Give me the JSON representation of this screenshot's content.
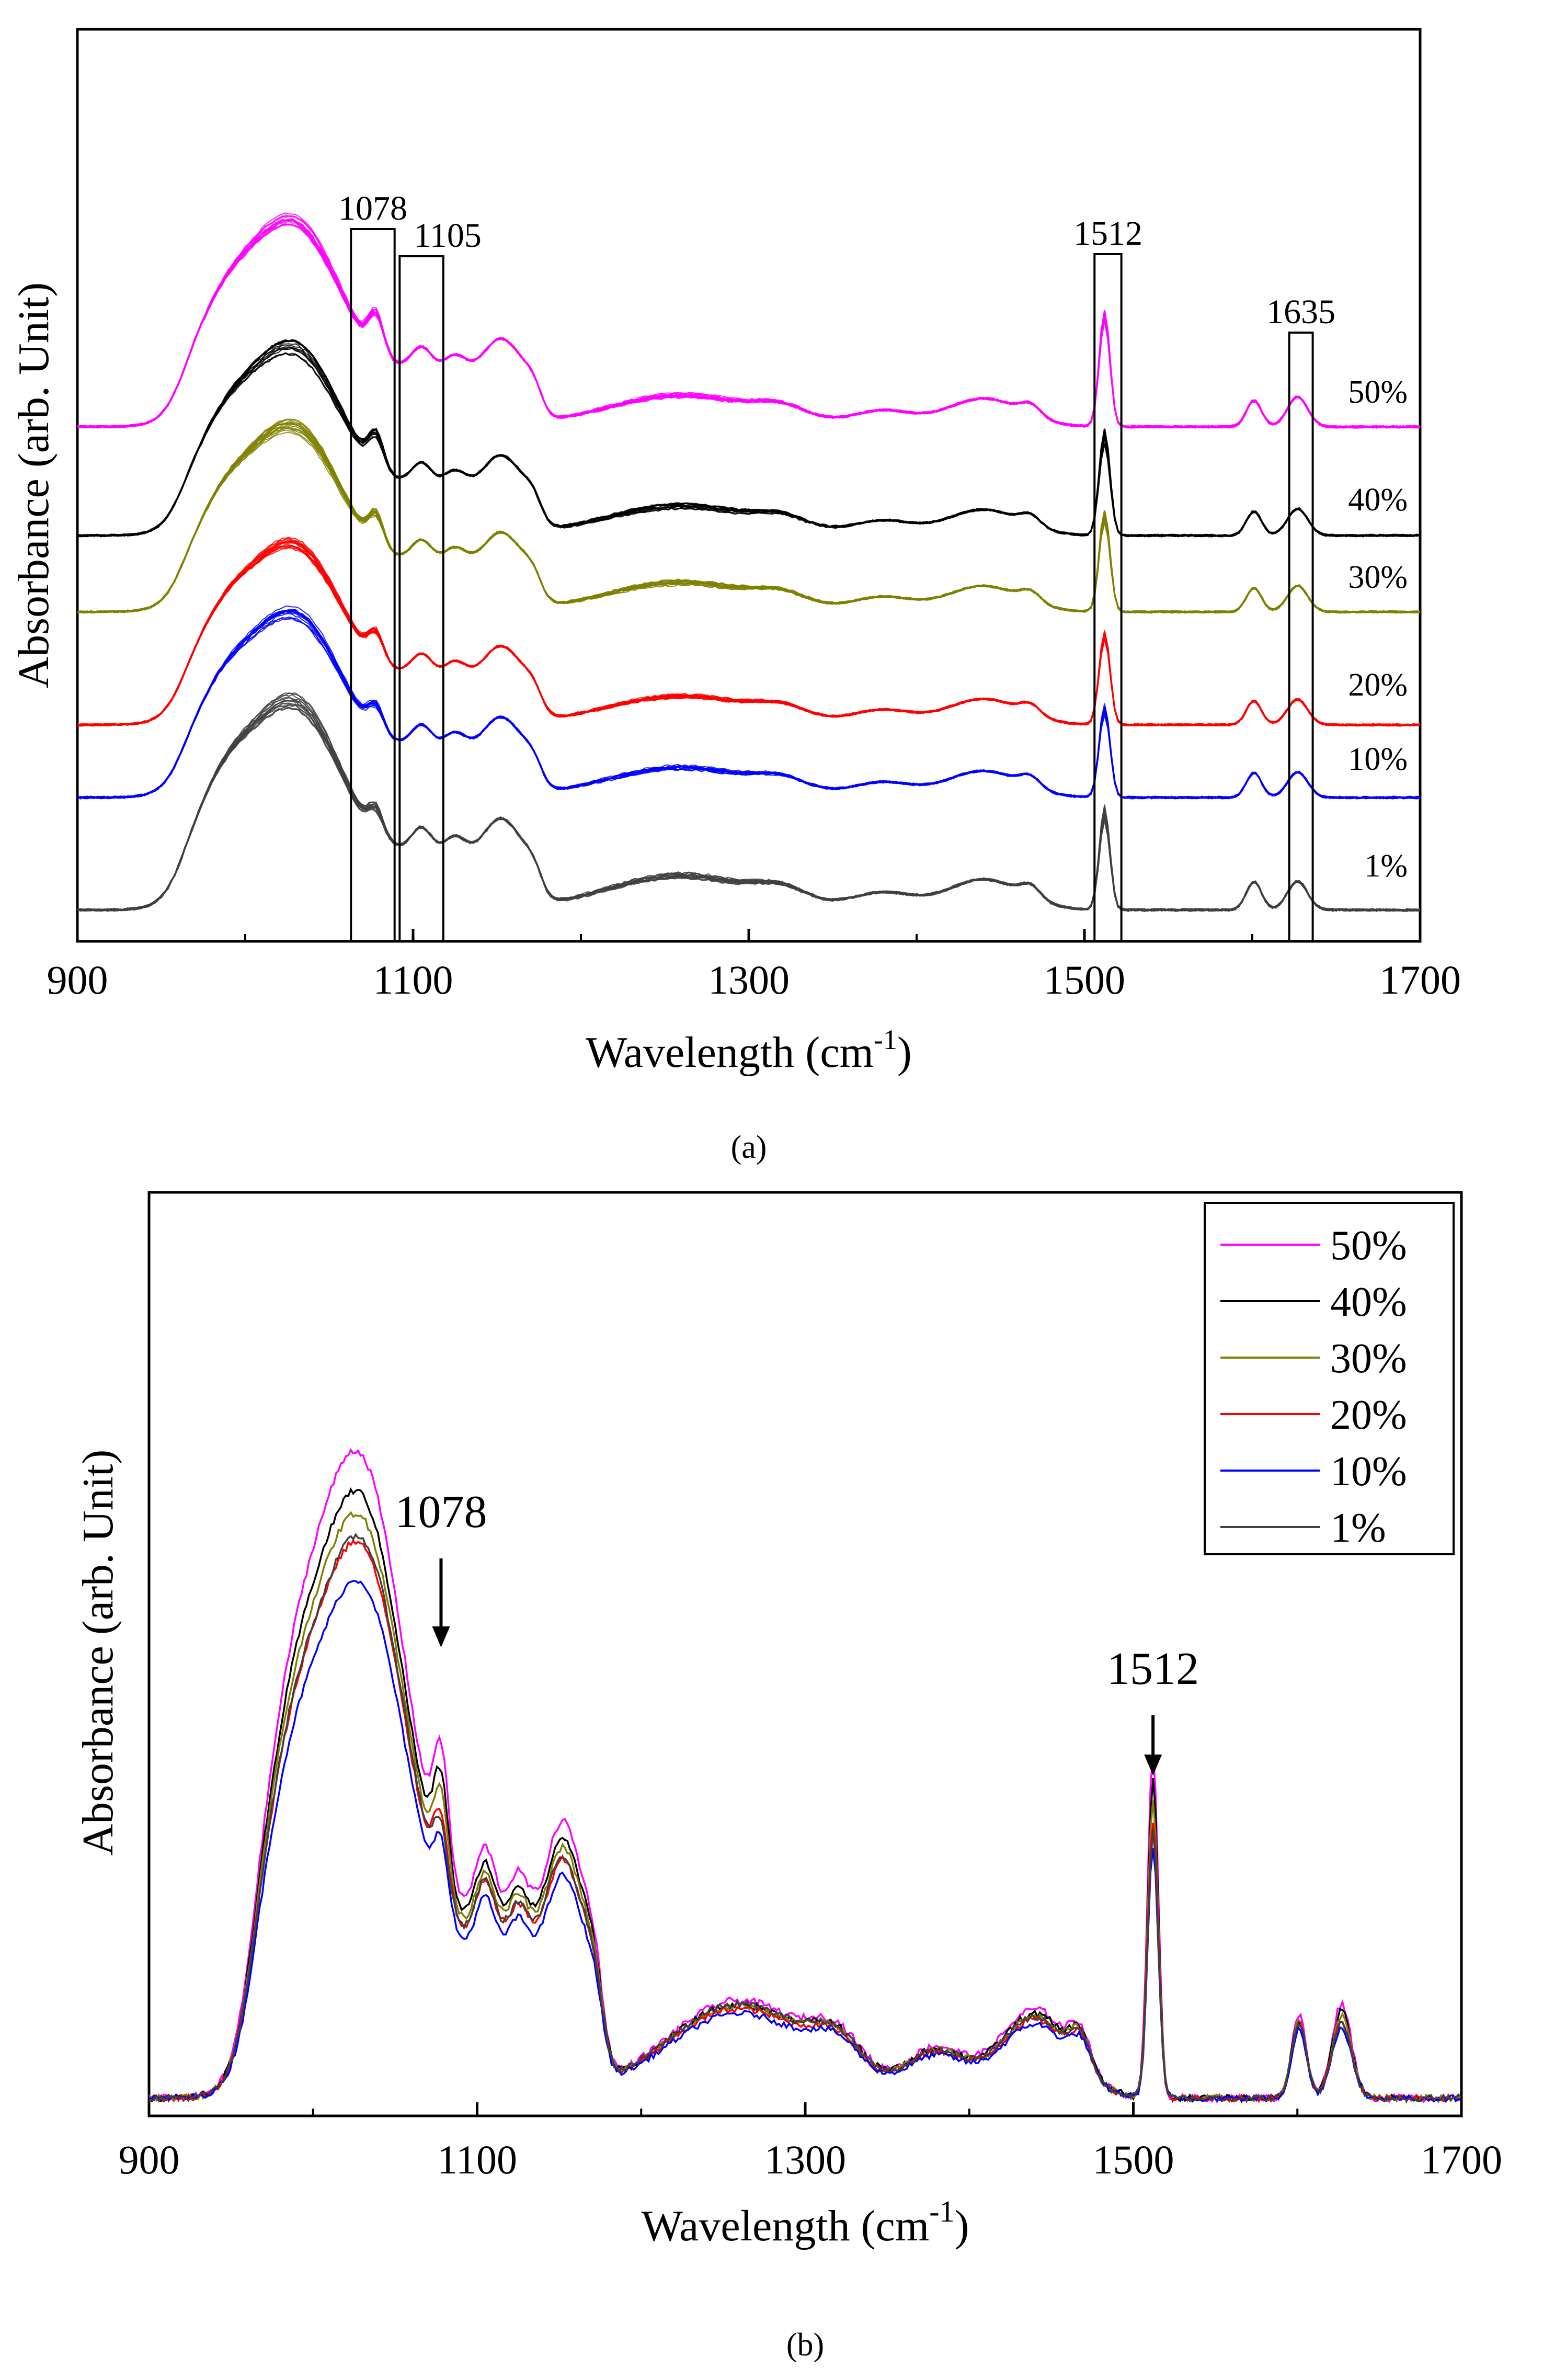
{
  "chart_data": [
    {
      "type": "line",
      "panel_label": "(a)",
      "xlabel": "Wavelength (cm",
      "xlabel_sup": "-1",
      "xlabel_tail": ")",
      "ylabel": "Absorbance (arb. Unit)",
      "xlim": [
        900,
        1700
      ],
      "xticks": [
        "900",
        "1100",
        "1300",
        "1500",
        "1700"
      ],
      "band_boxes": [
        {
          "label": "1078",
          "center": 1078
        },
        {
          "label": "1105",
          "center": 1105
        },
        {
          "label": "1512",
          "center": 1512
        },
        {
          "label": "1635",
          "center": 1635
        }
      ],
      "series": [
        {
          "name": "50%",
          "color": "#ff00ff"
        },
        {
          "name": "40%",
          "color": "#000000"
        },
        {
          "name": "30%",
          "color": "#808000"
        },
        {
          "name": "20%",
          "color": "#ff0000"
        },
        {
          "name": "10%",
          "color": "#0000ff"
        },
        {
          "name": "1%",
          "color": "#404040"
        }
      ]
    },
    {
      "type": "line",
      "panel_label": "(b)",
      "xlabel": "Wavelength (cm",
      "xlabel_sup": "-1",
      "xlabel_tail": ")",
      "ylabel": "Absorbance (arb. Unit)",
      "xlim": [
        900,
        1700
      ],
      "xticks": [
        "900",
        "1100",
        "1300",
        "1500",
        "1700"
      ],
      "legend_position": "top-right",
      "arrows": [
        {
          "label": "1078",
          "x": 1078
        },
        {
          "label": "1512",
          "x": 1512
        }
      ],
      "series": [
        {
          "name": "50%",
          "color": "#ff00ff"
        },
        {
          "name": "40%",
          "color": "#000000"
        },
        {
          "name": "30%",
          "color": "#808000"
        },
        {
          "name": "20%",
          "color": "#ff0000"
        },
        {
          "name": "10%",
          "color": "#0000ff"
        },
        {
          "name": "1%",
          "color": "#404040"
        }
      ]
    }
  ]
}
